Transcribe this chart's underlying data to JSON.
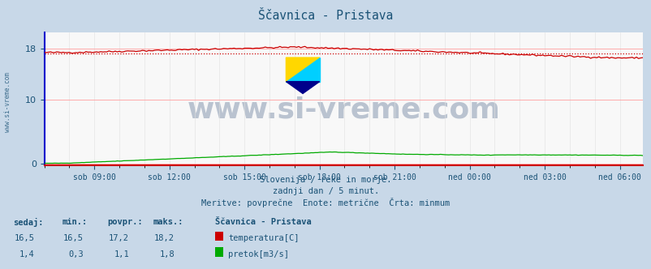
{
  "title": "Ščavnica - Pristava",
  "bg_color": "#c8d8e8",
  "plot_bg_color": "#f8f8f8",
  "grid_color_major": "#ffaaaa",
  "grid_color_minor": "#e0e0e0",
  "x_labels": [
    "sob 09:00",
    "sob 12:00",
    "sob 15:00",
    "sob 18:00",
    "sob 21:00",
    "ned 00:00",
    "ned 03:00",
    "ned 06:00"
  ],
  "total_points": 288,
  "ylim_min": -0.3,
  "ylim_max": 20.5,
  "yticks": [
    0,
    10,
    18
  ],
  "temp_min": 16.5,
  "temp_max": 18.2,
  "temp_avg": 17.2,
  "temp_current": 16.5,
  "flow_min": 0.3,
  "flow_max": 1.8,
  "flow_avg": 1.1,
  "flow_current": 1.4,
  "temp_color": "#cc0000",
  "flow_color": "#00aa00",
  "dotted_line_color": "#cc0000",
  "watermark_text": "www.si-vreme.com",
  "watermark_color": "#1a3a6a",
  "watermark_alpha": 0.28,
  "watermark_fontsize": 26,
  "subtitle1": "Slovenija / reke in morje.",
  "subtitle2": "zadnji dan / 5 minut.",
  "subtitle3": "Meritve: povprečne  Enote: metrične  Črta: minmum",
  "text_color": "#1a5276",
  "axis_label_color": "#1a5276",
  "left_spine_color": "#0000cc",
  "bottom_spine_color": "#cc0000",
  "table_headers": [
    "sedaj:",
    "min.:",
    "povpr.:",
    "maks.:"
  ],
  "station_name": "Ščavnica - Pristava",
  "legend_temp": "temperatura[C]",
  "legend_flow": "pretok[m3/s]",
  "logo_colors": [
    "#FFD700",
    "#00BFFF",
    "#00008B"
  ],
  "sidebar_text": "www.si-vreme.com"
}
